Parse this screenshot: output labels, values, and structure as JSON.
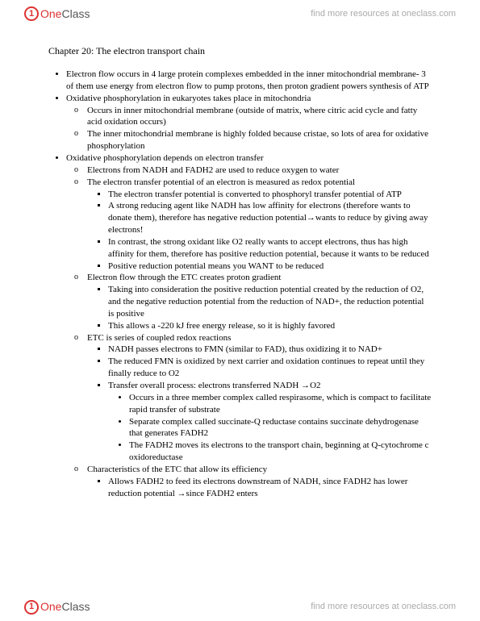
{
  "brand": {
    "one": "One",
    "class": "Class",
    "tagline": "find more resources at oneclass.com"
  },
  "title": "Chapter 20: The electron transport chain",
  "b1": "Electron flow occurs in 4 large protein complexes embedded in the inner mitochondrial membrane- 3 of them use energy from electron flow to pump protons, then proton gradient powers synthesis of ATP",
  "b2": "Oxidative phosphorylation in eukaryotes takes place in mitochondria",
  "b2a": "Occurs in inner mitochondrial membrane (outside of matrix, where citric acid cycle and fatty acid oxidation occurs)",
  "b2b": "The inner mitochondrial membrane is highly folded because cristae, so lots of area for oxidative phosphorylation",
  "b3": "Oxidative phosphorylation depends on electron transfer",
  "b3a": "Electrons from NADH and FADH2 are used to reduce oxygen to water",
  "b3b": "The electron transfer potential of an electron is measured as redox potential",
  "b3b1": "The electron transfer potential is converted to phosphoryl transfer potential of ATP",
  "b3b2": "A strong reducing agent like NADH has low affinity for electrons (therefore wants to donate them), therefore has negative reduction potential→wants to reduce by giving away electrons!",
  "b3b3": "In contrast, the strong oxidant like O2 really wants to accept electrons, thus has high affinity for them, therefore has positive reduction potential, because it wants to be reduced",
  "b3b4": "Positive reduction potential means you WANT to be reduced",
  "b3c": "Electron flow through the ETC creates proton gradient",
  "b3c1": "Taking into consideration the positive reduction potential created by the reduction of O2, and the negative reduction potential from the reduction of NAD+, the reduction potential is positive",
  "b3c2": "This allows a -220 kJ free energy release, so it is highly favored",
  "b3d": "ETC is series of coupled redox reactions",
  "b3d1": "NADH passes electrons to FMN (similar to FAD), thus oxidizing it to NAD+",
  "b3d2": "The reduced FMN is oxidized by next carrier and oxidation continues to repeat until they finally reduce to O2",
  "b3d3": "Transfer overall process: electrons transferred NADH →O2",
  "b3d3a": "Occurs in a three member complex called respirasome, which is compact to facilitate rapid transfer of substrate",
  "b3d3b": "Separate complex called succinate-Q reductase contains succinate dehydrogenase that generates FADH2",
  "b3d3c": "The FADH2 moves its electrons to the transport chain, beginning at Q-cytochrome c oxidoreductase",
  "b3e": "Characteristics of the ETC that allow its efficiency",
  "b3e1": "Allows FADH2 to feed its electrons downstream of NADH, since FADH2 has lower reduction potential →since FADH2 enters"
}
